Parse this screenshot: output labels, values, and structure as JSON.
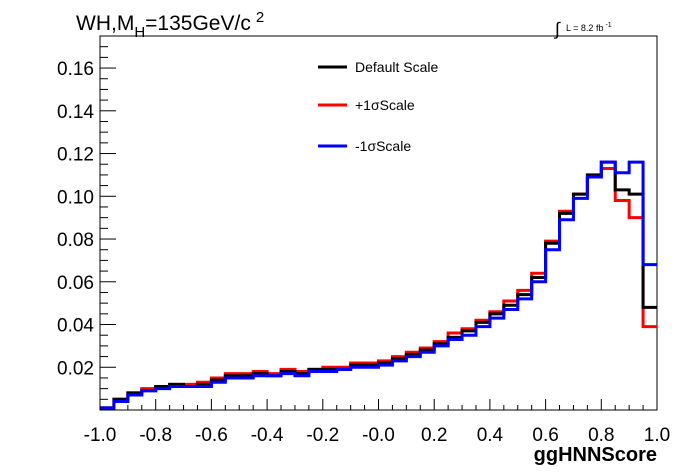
{
  "chart_data": {
    "type": "line",
    "subtype": "step-histogram",
    "title": {
      "main": "WH,M",
      "sub": "H",
      "value": "=135GeV/c",
      "sup": "2"
    },
    "lumi": {
      "symbol": "∫",
      "text": "L = 8.2 fb",
      "sup": "-1"
    },
    "xlabel": "ggHNNScore",
    "ylabel": "",
    "xlim": [
      -1.0,
      1.0
    ],
    "ylim": [
      0.0,
      0.175
    ],
    "xticks": [
      -1.0,
      -0.8,
      -0.6,
      -0.4,
      -0.2,
      0.0,
      0.2,
      0.4,
      0.6,
      0.8,
      1.0
    ],
    "xtick_labels": [
      "-1.0",
      "-0.8",
      "-0.6",
      "-0.4",
      "-0.2",
      "-0.0",
      "0.2",
      "0.4",
      "0.6",
      "0.8",
      "1.0"
    ],
    "yticks": [
      0.02,
      0.04,
      0.06,
      0.08,
      0.1,
      0.12,
      0.14,
      0.16
    ],
    "ytick_labels": [
      "0.02",
      "0.04",
      "0.06",
      "0.08",
      "0.10",
      "0.12",
      "0.14",
      "0.16"
    ],
    "bin_edges": [
      -1.0,
      -0.95,
      -0.9,
      -0.85,
      -0.8,
      -0.75,
      -0.7,
      -0.65,
      -0.6,
      -0.55,
      -0.5,
      -0.45,
      -0.4,
      -0.35,
      -0.3,
      -0.25,
      -0.2,
      -0.15,
      -0.1,
      -0.05,
      0.0,
      0.05,
      0.1,
      0.15,
      0.2,
      0.25,
      0.3,
      0.35,
      0.4,
      0.45,
      0.5,
      0.55,
      0.6,
      0.65,
      0.7,
      0.75,
      0.8,
      0.85,
      0.9,
      0.95,
      1.0
    ],
    "legend_position": "top-center",
    "series": [
      {
        "name": "Default Scale",
        "color": "#000000",
        "values": [
          0.001,
          0.005,
          0.008,
          0.009,
          0.011,
          0.012,
          0.011,
          0.012,
          0.014,
          0.016,
          0.016,
          0.017,
          0.016,
          0.018,
          0.017,
          0.019,
          0.019,
          0.019,
          0.021,
          0.021,
          0.022,
          0.024,
          0.026,
          0.028,
          0.031,
          0.034,
          0.037,
          0.041,
          0.045,
          0.049,
          0.054,
          0.062,
          0.078,
          0.092,
          0.101,
          0.11,
          0.116,
          0.103,
          0.101,
          0.048
        ]
      },
      {
        "name": "+1σScale",
        "color": "#ff0000",
        "values": [
          0.001,
          0.005,
          0.008,
          0.01,
          0.011,
          0.012,
          0.012,
          0.013,
          0.015,
          0.017,
          0.017,
          0.018,
          0.017,
          0.019,
          0.018,
          0.019,
          0.02,
          0.02,
          0.022,
          0.022,
          0.023,
          0.025,
          0.027,
          0.029,
          0.032,
          0.036,
          0.038,
          0.042,
          0.046,
          0.051,
          0.056,
          0.064,
          0.079,
          0.093,
          0.101,
          0.109,
          0.113,
          0.098,
          0.09,
          0.039
        ]
      },
      {
        "name": "-1σScale",
        "color": "#0000ff",
        "values": [
          0.001,
          0.004,
          0.007,
          0.009,
          0.01,
          0.011,
          0.011,
          0.011,
          0.013,
          0.015,
          0.015,
          0.016,
          0.016,
          0.017,
          0.016,
          0.018,
          0.018,
          0.019,
          0.02,
          0.02,
          0.021,
          0.023,
          0.025,
          0.027,
          0.03,
          0.033,
          0.035,
          0.039,
          0.043,
          0.047,
          0.052,
          0.06,
          0.075,
          0.089,
          0.099,
          0.109,
          0.116,
          0.111,
          0.116,
          0.068
        ]
      }
    ]
  }
}
